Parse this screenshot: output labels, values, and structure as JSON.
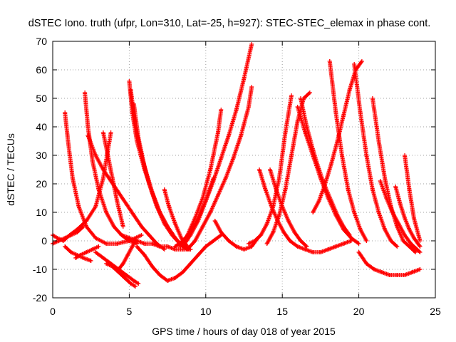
{
  "chart_data": {
    "type": "scatter",
    "title": "dSTEC Iono. truth (ufpr, Lon=310, Lat=-25, h=927): STEC-STEC_elemax in phase cont.",
    "xlabel": "GPS time / hours of day 018 of year 2015",
    "ylabel": "dSTEC  / TECUs",
    "xlim": [
      0,
      25
    ],
    "ylim": [
      -20,
      70
    ],
    "xticks": [
      0,
      5,
      10,
      15,
      20,
      25
    ],
    "yticks": [
      -20,
      -10,
      0,
      10,
      20,
      30,
      40,
      50,
      60,
      70
    ],
    "grid": true,
    "marker": "+",
    "color": "#ff0000",
    "series": [
      {
        "x": [
          0.0,
          0.3,
          0.7,
          1.1,
          1.6,
          2.2,
          2.8,
          3.3,
          3.8
        ],
        "y": [
          2,
          1,
          0,
          2,
          4,
          7,
          12,
          22,
          38
        ]
      },
      {
        "x": [
          0.0,
          0.4,
          0.8,
          1.2,
          1.6,
          2.0
        ],
        "y": [
          -1,
          0,
          1,
          2,
          3,
          5
        ]
      },
      {
        "x": [
          0.8,
          1.0,
          1.3,
          1.7,
          2.2,
          2.8,
          3.5,
          4.2,
          5.0,
          5.8
        ],
        "y": [
          45,
          35,
          22,
          12,
          5,
          1,
          -1,
          -1,
          0,
          2
        ]
      },
      {
        "x": [
          0.8,
          1.2,
          1.6,
          2.0,
          2.5
        ],
        "y": [
          -2,
          -4,
          -5,
          -6,
          -7
        ]
      },
      {
        "x": [
          1.5,
          1.8,
          2.2,
          2.6,
          3.0
        ],
        "y": [
          -6,
          -5,
          -4,
          -3,
          -2
        ]
      },
      {
        "x": [
          2.1,
          2.3,
          2.6,
          3.0,
          3.5,
          4.0,
          4.5,
          5.0,
          5.5
        ],
        "y": [
          52,
          40,
          28,
          18,
          10,
          5,
          2,
          0,
          -1
        ]
      },
      {
        "x": [
          2.3,
          2.8,
          3.3,
          3.8,
          4.3,
          4.8,
          5.3,
          5.8,
          6.3,
          6.8,
          7.3
        ],
        "y": [
          37,
          30,
          25,
          21,
          17,
          13,
          9,
          5,
          2,
          -1,
          -3
        ]
      },
      {
        "x": [
          3.3,
          3.6,
          3.9,
          4.2,
          4.6
        ],
        "y": [
          38,
          30,
          22,
          14,
          5
        ]
      },
      {
        "x": [
          2.8,
          3.3,
          3.8,
          4.3,
          4.8,
          5.3,
          5.6
        ],
        "y": [
          -4,
          -6,
          -8,
          -10,
          -12,
          -14,
          -15
        ]
      },
      {
        "x": [
          3.5,
          3.9,
          4.3,
          4.7,
          5.1,
          5.4
        ],
        "y": [
          -8,
          -9,
          -11,
          -13,
          -15,
          -16
        ]
      },
      {
        "x": [
          4.3,
          4.6,
          4.9,
          5.2,
          5.4
        ],
        "y": [
          -10,
          -8,
          -5,
          -2,
          0
        ]
      },
      {
        "x": [
          5.0,
          5.2,
          5.5,
          6.0,
          6.5,
          7.0,
          7.5,
          8.0,
          8.5
        ],
        "y": [
          56,
          45,
          35,
          25,
          17,
          10,
          5,
          1,
          -2
        ]
      },
      {
        "x": [
          5.1,
          5.4,
          5.8,
          6.3,
          6.8,
          7.3,
          7.8,
          8.3,
          8.8
        ],
        "y": [
          53,
          40,
          30,
          20,
          12,
          6,
          2,
          -1,
          -3
        ]
      },
      {
        "x": [
          5.3,
          5.6,
          6.0,
          6.5,
          7.0,
          7.5,
          8.0,
          8.5,
          9.0
        ],
        "y": [
          48,
          36,
          26,
          17,
          10,
          5,
          1,
          -2,
          -3
        ]
      },
      {
        "x": [
          4.5,
          5.0,
          5.5,
          6.0,
          6.5,
          7.0,
          7.5,
          8.0,
          8.5,
          9.0
        ],
        "y": [
          2,
          1,
          0,
          -1,
          -1,
          -2,
          -2,
          -3,
          -3,
          -3
        ]
      },
      {
        "x": [
          5.5,
          6.0,
          6.5,
          7.0,
          7.5,
          8.0,
          8.5,
          9.0,
          9.5,
          10.0,
          10.5,
          11.0
        ],
        "y": [
          -2,
          -5,
          -9,
          -12,
          -14,
          -13,
          -11,
          -8,
          -5,
          -2,
          0,
          2
        ]
      },
      {
        "x": [
          7.3,
          7.6,
          8.0,
          8.4,
          8.8
        ],
        "y": [
          18,
          12,
          6,
          1,
          -2
        ]
      },
      {
        "x": [
          8.3,
          8.8,
          9.3,
          9.8,
          10.3,
          10.8,
          11.0
        ],
        "y": [
          -2,
          2,
          8,
          15,
          25,
          38,
          46
        ]
      },
      {
        "x": [
          8.5,
          9.0,
          9.5,
          10.0,
          10.5,
          11.0,
          11.5,
          12.0,
          12.5,
          13.0
        ],
        "y": [
          -2,
          2,
          7,
          14,
          21,
          29,
          37,
          46,
          57,
          69
        ]
      },
      {
        "x": [
          8.8,
          9.3,
          9.8,
          10.3,
          10.8,
          11.3,
          11.8,
          12.3,
          12.8,
          13.0
        ],
        "y": [
          -3,
          0,
          5,
          10,
          16,
          22,
          29,
          37,
          47,
          54
        ]
      },
      {
        "x": [
          8.0,
          8.5,
          9.0,
          9.5,
          10.0,
          10.5
        ],
        "y": [
          -2,
          0,
          3,
          8,
          14,
          22
        ]
      },
      {
        "x": [
          10.6,
          11.0,
          11.5,
          12.0,
          12.5,
          13.0,
          13.4
        ],
        "y": [
          7,
          3,
          0,
          -2,
          -3,
          -2,
          1
        ]
      },
      {
        "x": [
          12.8,
          13.2,
          13.6,
          14.0,
          14.4,
          14.8,
          15.2,
          15.6
        ],
        "y": [
          -1,
          0,
          2,
          6,
          12,
          22,
          38,
          51
        ]
      },
      {
        "x": [
          14.0,
          14.4,
          14.8,
          15.2,
          15.6,
          16.0,
          16.4,
          16.8
        ],
        "y": [
          -1,
          3,
          9,
          18,
          30,
          42,
          50,
          52
        ]
      },
      {
        "x": [
          13.5,
          13.9,
          14.3,
          14.7,
          15.1,
          15.5,
          16.0,
          16.5,
          17.0,
          17.5,
          18.0,
          18.5,
          19.0,
          19.5
        ],
        "y": [
          25,
          18,
          12,
          7,
          3,
          0,
          -2,
          -3,
          -4,
          -4,
          -3,
          -2,
          -1,
          0
        ]
      },
      {
        "x": [
          14.2,
          14.6,
          15.0,
          15.4,
          15.8,
          16.2,
          16.6
        ],
        "y": [
          25,
          18,
          12,
          7,
          3,
          0,
          -2
        ]
      },
      {
        "x": [
          16.2,
          16.6,
          17.0,
          17.4,
          17.8,
          18.2,
          18.6,
          19.0,
          19.4
        ],
        "y": [
          50,
          40,
          32,
          25,
          19,
          14,
          9,
          5,
          2
        ]
      },
      {
        "x": [
          16.0,
          16.5,
          17.0,
          17.5,
          18.0,
          18.5,
          19.0,
          19.5,
          20.0
        ],
        "y": [
          47,
          38,
          30,
          22,
          15,
          9,
          4,
          1,
          -1
        ]
      },
      {
        "x": [
          17.0,
          17.4,
          17.8,
          18.2,
          18.6,
          19.0,
          19.4,
          19.8,
          20.2
        ],
        "y": [
          10,
          14,
          20,
          27,
          35,
          44,
          53,
          60,
          63
        ]
      },
      {
        "x": [
          18.1,
          18.5,
          18.9,
          19.3,
          19.7,
          20.1,
          20.5
        ],
        "y": [
          63,
          45,
          30,
          18,
          10,
          4,
          0
        ]
      },
      {
        "x": [
          19.7,
          20.1,
          20.5,
          20.9,
          21.3,
          21.7,
          22.1,
          22.5
        ],
        "y": [
          62,
          45,
          30,
          18,
          10,
          4,
          0,
          -2
        ]
      },
      {
        "x": [
          20.9,
          21.3,
          21.7,
          22.1,
          22.5,
          22.9,
          23.3,
          23.7
        ],
        "y": [
          50,
          35,
          22,
          12,
          5,
          0,
          -2,
          -4
        ]
      },
      {
        "x": [
          20.0,
          20.5,
          21.0,
          21.5,
          22.0,
          22.5,
          23.0,
          23.5,
          24.0
        ],
        "y": [
          -4,
          -8,
          -10,
          -11,
          -12,
          -12,
          -12,
          -11,
          -10
        ]
      },
      {
        "x": [
          21.4,
          21.8,
          22.2,
          22.6,
          23.0,
          23.4,
          23.8,
          24.0
        ],
        "y": [
          21,
          15,
          10,
          6,
          2,
          -1,
          -3,
          -4
        ]
      },
      {
        "x": [
          22.4,
          22.7,
          23.0,
          23.3,
          23.6,
          24.0
        ],
        "y": [
          19,
          13,
          8,
          4,
          1,
          -2
        ]
      },
      {
        "x": [
          23.0,
          23.3,
          23.6,
          24.0
        ],
        "y": [
          30,
          18,
          8,
          0
        ]
      }
    ]
  }
}
